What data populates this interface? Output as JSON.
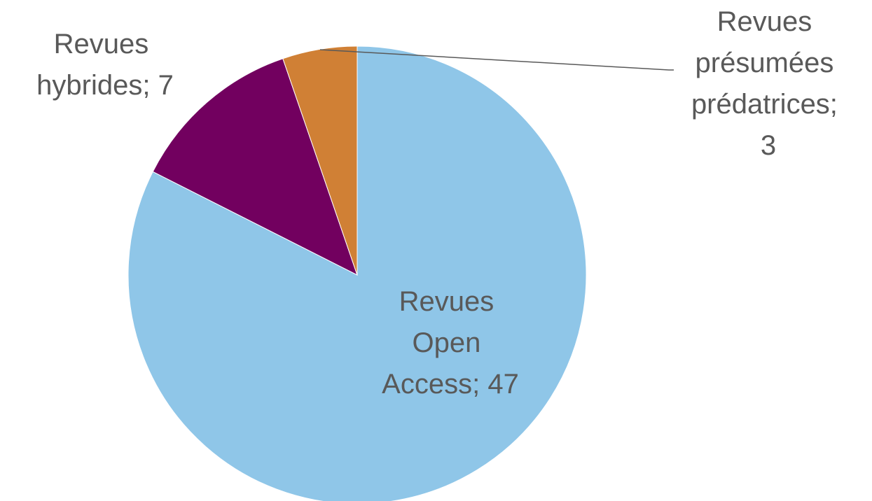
{
  "chart_data": {
    "type": "pie",
    "values": [
      47,
      7,
      3
    ],
    "value_labels": [
      "Revues Open Access; 47",
      "Revues hybrides; 7",
      "Revues présumées prédatrices; 3"
    ],
    "colors": [
      "#8fc6e8",
      "#72005f",
      "#d08035"
    ]
  }
}
